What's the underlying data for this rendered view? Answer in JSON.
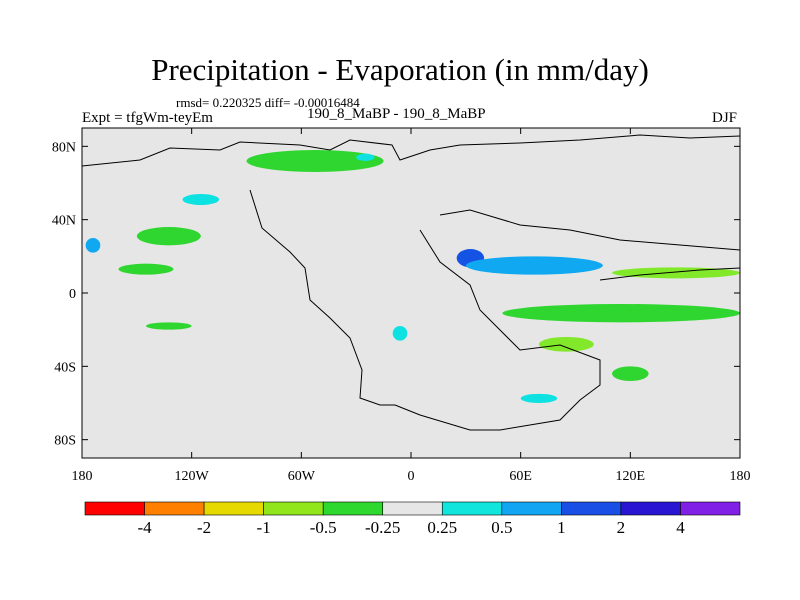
{
  "header": {
    "title": "Precipitation - Evaporation (in mm/day)",
    "subtitle": "rmsd= 0.220325 diff= -0.00016484",
    "left_label": "Expt = tfgWm-teyEm",
    "center_label": "190_8_MaBP - 190_8_MaBP",
    "right_label": "DJF"
  },
  "colors": {
    "background_field": "#e6e6e6",
    "coast": "#000000",
    "lev_m025_m05": "#2fd62f",
    "lev_m05_m1": "#82e82a",
    "lev_p025_p05": "#0ee1e1",
    "lev_p05_p1": "#10a8f0",
    "lev_p1_p2": "#1453e4",
    "lev_p2_p4": "#2812c8"
  },
  "chart_data": {
    "type": "heatmap",
    "title": "Precipitation - Evaporation (in mm/day)",
    "xlabel": "",
    "ylabel": "",
    "xlim": [
      -180,
      180
    ],
    "ylim": [
      -90,
      90
    ],
    "x_ticks": [
      {
        "value": -180,
        "label": "180"
      },
      {
        "value": -120,
        "label": "120W"
      },
      {
        "value": -60,
        "label": "60W"
      },
      {
        "value": 0,
        "label": "0"
      },
      {
        "value": 60,
        "label": "60E"
      },
      {
        "value": 120,
        "label": "120E"
      },
      {
        "value": 180,
        "label": "180"
      }
    ],
    "y_ticks": [
      {
        "value": 80,
        "label": "80N"
      },
      {
        "value": 40,
        "label": "40N"
      },
      {
        "value": 0,
        "label": "0"
      },
      {
        "value": -40,
        "label": "40S"
      },
      {
        "value": -80,
        "label": "80S"
      }
    ],
    "colorbar": {
      "colors": [
        "#ff0000",
        "#ff8000",
        "#e6d900",
        "#90e61a",
        "#2ed82e",
        "#e6e6e6",
        "#12e6dc",
        "#12a6f2",
        "#1a4fe6",
        "#2a16d2",
        "#8020e6"
      ],
      "labels": [
        "-4",
        "-2",
        "-1",
        "-0.5",
        "-0.25",
        "0.25",
        "0.5",
        "1",
        "2",
        "4"
      ]
    },
    "regions": [
      {
        "name": "arctic-atlantic-band",
        "level": "lev_m025_m05",
        "lon": [
          -90,
          -15
        ],
        "lat": [
          66,
          78
        ]
      },
      {
        "name": "nw-pacific-band",
        "level": "lev_m025_m05",
        "lon": [
          -150,
          -115
        ],
        "lat": [
          26,
          36
        ]
      },
      {
        "name": "north-pacific-low-band",
        "level": "lev_m025_m05",
        "lon": [
          -160,
          -130
        ],
        "lat": [
          10,
          16
        ]
      },
      {
        "name": "south-pacific-band",
        "level": "lev_m025_m05",
        "lon": [
          -145,
          -120
        ],
        "lat": [
          -20,
          -16
        ]
      },
      {
        "name": "west-pacific-blue",
        "level": "lev_p05_p1",
        "lon": [
          -178,
          -170
        ],
        "lat": [
          22,
          30
        ]
      },
      {
        "name": "med-blue-core",
        "level": "lev_p1_p2",
        "lon": [
          25,
          40
        ],
        "lat": [
          14,
          24
        ]
      },
      {
        "name": "indian-ocean-band-n",
        "level": "lev_p05_p1",
        "lon": [
          30,
          105
        ],
        "lat": [
          10,
          20
        ]
      },
      {
        "name": "pacific-tropics-band",
        "level": "lev_m05_m1",
        "lon": [
          110,
          180
        ],
        "lat": [
          8,
          14
        ]
      },
      {
        "name": "south-indian-band",
        "level": "lev_m025_m05",
        "lon": [
          50,
          180
        ],
        "lat": [
          -16,
          -6
        ]
      },
      {
        "name": "australia-green",
        "level": "lev_m05_m1",
        "lon": [
          70,
          100
        ],
        "lat": [
          -32,
          -24
        ]
      },
      {
        "name": "southern-ocean-green",
        "level": "lev_m025_m05",
        "lon": [
          110,
          130
        ],
        "lat": [
          -48,
          -40
        ]
      },
      {
        "name": "atlantic-patch-s",
        "level": "lev_p025_p05",
        "lon": [
          -10,
          -2
        ],
        "lat": [
          -26,
          -18
        ]
      },
      {
        "name": "arctic-cyan",
        "level": "lev_p025_p05",
        "lon": [
          -30,
          -20
        ],
        "lat": [
          72,
          76
        ]
      },
      {
        "name": "nw-atlantic-cyan",
        "level": "lev_p025_p05",
        "lon": [
          -125,
          -105
        ],
        "lat": [
          48,
          54
        ]
      },
      {
        "name": "antarctic-cyan",
        "level": "lev_p025_p05",
        "lon": [
          60,
          80
        ],
        "lat": [
          -60,
          -55
        ]
      }
    ]
  }
}
